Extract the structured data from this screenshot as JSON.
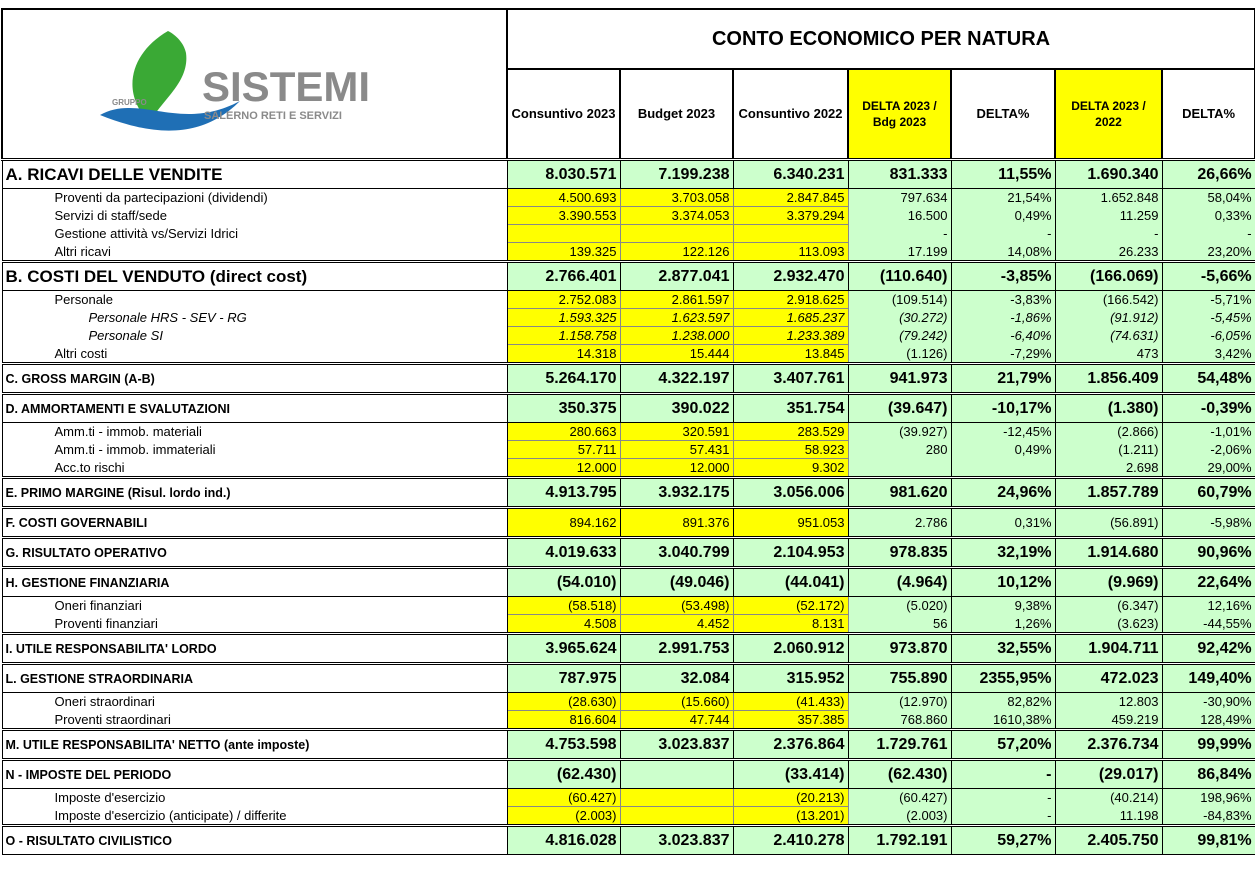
{
  "header": {
    "logo": {
      "group": "GRUPPO",
      "name": "SISTEMI",
      "subtitle": "SALERNO RETI E SERVIZI"
    },
    "title": "CONTO ECONOMICO PER NATURA",
    "columns": [
      "Consuntivo 2023",
      "Budget 2023",
      "Consuntivo 2022",
      "DELTA 2023 / Bdg 2023",
      "DELTA%",
      "DELTA 2023 / 2022",
      "DELTA%"
    ]
  },
  "sections": [
    {
      "label": "A. RICAVI DELLE VENDITE",
      "values": [
        "8.030.571",
        "7.199.238",
        "6.340.231",
        "831.333",
        "11,55%",
        "1.690.340",
        "26,66%"
      ],
      "items": [
        {
          "label": "Proventi da partecipazioni (dividendi)",
          "values": [
            "4.500.693",
            "3.703.058",
            "2.847.845",
            "797.634",
            "21,54%",
            "1.652.848",
            "58,04%"
          ]
        },
        {
          "label": "Servizi di staff/sede",
          "values": [
            "3.390.553",
            "3.374.053",
            "3.379.294",
            "16.500",
            "0,49%",
            "11.259",
            "0,33%"
          ]
        },
        {
          "label": "Gestione attività  vs/Servizi Idrici",
          "values": [
            null,
            null,
            null,
            "-",
            "-",
            "-",
            "-"
          ]
        },
        {
          "label": "Altri ricavi",
          "values": [
            "139.325",
            "122.126",
            "113.093",
            "17.199",
            "14,08%",
            "26.233",
            "23,20%"
          ]
        }
      ]
    },
    {
      "label": "B. COSTI DEL VENDUTO (direct cost)",
      "values": [
        "2.766.401",
        "2.877.041",
        "2.932.470",
        "(110.640)",
        "-3,85%",
        "(166.069)",
        "-5,66%"
      ],
      "items": [
        {
          "label": "Personale",
          "values": [
            "2.752.083",
            "2.861.597",
            "2.918.625",
            "(109.514)",
            "-3,83%",
            "(166.542)",
            "-5,71%"
          ],
          "items": [
            {
              "label": "Personale HRS - SEV - RG",
              "values": [
                "1.593.325",
                "1.623.597",
                "1.685.237",
                "(30.272)",
                "-1,86%",
                "(91.912)",
                "-5,45%"
              ]
            },
            {
              "label": "Personale SI",
              "values": [
                "1.158.758",
                "1.238.000",
                "1.233.389",
                "(79.242)",
                "-6,40%",
                "(74.631)",
                "-6,05%"
              ]
            }
          ]
        },
        {
          "label": "Altri costi",
          "values": [
            "14.318",
            "15.444",
            "13.845",
            "(1.126)",
            "-7,29%",
            "473",
            "3,42%"
          ]
        }
      ]
    },
    {
      "label": "C. GROSS MARGIN  (A-B)",
      "values": [
        "5.264.170",
        "4.322.197",
        "3.407.761",
        "941.973",
        "21,79%",
        "1.856.409",
        "54,48%"
      ]
    },
    {
      "label": "D.  AMMORTAMENTI E SVALUTAZIONI",
      "values": [
        "350.375",
        "390.022",
        "351.754",
        "(39.647)",
        "-10,17%",
        "(1.380)",
        "-0,39%"
      ],
      "items": [
        {
          "label": "Amm.ti - immob. materiali",
          "values": [
            "280.663",
            "320.591",
            "283.529",
            "(39.927)",
            "-12,45%",
            "(2.866)",
            "-1,01%"
          ]
        },
        {
          "label": "Amm.ti - immob. immateriali",
          "values": [
            "57.711",
            "57.431",
            "58.923",
            "280",
            "0,49%",
            "(1.211)",
            "-2,06%"
          ]
        },
        {
          "label": "Acc.to rischi",
          "values": [
            "12.000",
            "12.000",
            "9.302",
            null,
            null,
            "2.698",
            "29,00%"
          ]
        }
      ]
    },
    {
      "label": "E. PRIMO MARGINE (Risul. lordo ind.)",
      "values": [
        "4.913.795",
        "3.932.175",
        "3.056.006",
        "981.620",
        "24,96%",
        "1.857.789",
        "60,79%"
      ]
    },
    {
      "label": "F. COSTI GOVERNABILI",
      "values": [
        "894.162",
        "891.376",
        "951.053",
        "2.786",
        "0,31%",
        "(56.891)",
        "-5,98%"
      ]
    },
    {
      "label": "G. RISULTATO OPERATIVO",
      "values": [
        "4.019.633",
        "3.040.799",
        "2.104.953",
        "978.835",
        "32,19%",
        "1.914.680",
        "90,96%"
      ]
    },
    {
      "label": "H. GESTIONE FINANZIARIA",
      "values": [
        "(54.010)",
        "(49.046)",
        "(44.041)",
        "(4.964)",
        "10,12%",
        "(9.969)",
        "22,64%"
      ],
      "items": [
        {
          "label": "Oneri finanziari",
          "values": [
            "(58.518)",
            "(53.498)",
            "(52.172)",
            "(5.020)",
            "9,38%",
            "(6.347)",
            "12,16%"
          ]
        },
        {
          "label": "Proventi finanziari",
          "values": [
            "4.508",
            "4.452",
            "8.131",
            "56",
            "1,26%",
            "(3.623)",
            "-44,55%"
          ]
        }
      ]
    },
    {
      "label": "I. UTILE RESPONSABILITA' LORDO",
      "values": [
        "3.965.624",
        "2.991.753",
        "2.060.912",
        "973.870",
        "32,55%",
        "1.904.711",
        "92,42%"
      ]
    },
    {
      "label": "L. GESTIONE STRAORDINARIA",
      "values": [
        "787.975",
        "32.084",
        "315.952",
        "755.890",
        "2355,95%",
        "472.023",
        "149,40%"
      ],
      "items": [
        {
          "label": "Oneri straordinari",
          "values": [
            "(28.630)",
            "(15.660)",
            "(41.433)",
            "(12.970)",
            "82,82%",
            "12.803",
            "-30,90%"
          ]
        },
        {
          "label": "Proventi straordinari",
          "values": [
            "816.604",
            "47.744",
            "357.385",
            "768.860",
            "1610,38%",
            "459.219",
            "128,49%"
          ]
        }
      ]
    },
    {
      "label": "M. UTILE RESPONSABILITA'  NETTO (ante imposte)",
      "values": [
        "4.753.598",
        "3.023.837",
        "2.376.864",
        "1.729.761",
        "57,20%",
        "2.376.734",
        "99,99%"
      ]
    },
    {
      "label": "N - IMPOSTE DEL PERIODO",
      "values": [
        "(62.430)",
        null,
        "(33.414)",
        "(62.430)",
        "-",
        "(29.017)",
        "86,84%"
      ],
      "items": [
        {
          "label": "Imposte d'esercizio",
          "values": [
            "(60.427)",
            null,
            "(20.213)",
            "(60.427)",
            "-",
            "(40.214)",
            "198,96%"
          ]
        },
        {
          "label": "Imposte d'esercizio (anticipate) / differite",
          "values": [
            "(2.003)",
            null,
            "(13.201)",
            "(2.003)",
            "-",
            "11.198",
            "-84,83%"
          ]
        }
      ]
    },
    {
      "label": "O - RISULTATO CIVILISTICO",
      "values": [
        "4.816.028",
        "3.023.837",
        "2.410.278",
        "1.792.191",
        "59,27%",
        "2.405.750",
        "99,81%"
      ]
    }
  ]
}
